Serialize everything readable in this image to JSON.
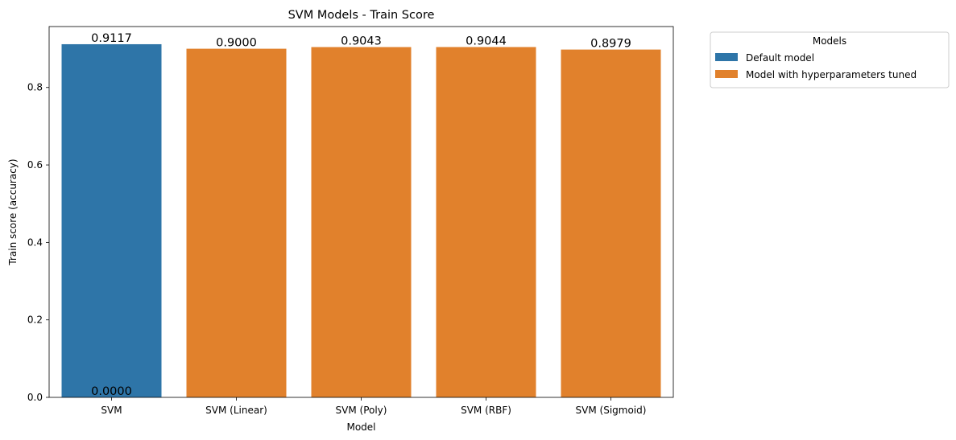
{
  "chart_data": {
    "type": "bar",
    "title": "SVM Models - Train Score",
    "xlabel": "Model",
    "ylabel": "Train score (accuracy)",
    "categories": [
      "SVM",
      "SVM (Linear)",
      "SVM (Poly)",
      "SVM (RBF)",
      "SVM (Sigmoid)"
    ],
    "series": [
      {
        "name": "Default model",
        "color": "#2e75a8",
        "values": [
          0.9117,
          null,
          null,
          null,
          null
        ]
      },
      {
        "name": "Model with hyperparameters tuned",
        "color": "#e1812c",
        "values": [
          0.0,
          0.9,
          0.9043,
          0.9044,
          0.8979
        ]
      }
    ],
    "bar_labels": [
      "0.9117",
      "0.9000",
      "0.9043",
      "0.9044",
      "0.8979"
    ],
    "extra_labels": [
      {
        "category": "SVM",
        "text": "0.0000",
        "value": 0.0
      }
    ],
    "ylim": [
      0,
      0.9573
    ],
    "yticks": [
      0.0,
      0.2,
      0.4,
      0.6,
      0.8
    ],
    "ytick_labels": [
      "0.0",
      "0.2",
      "0.4",
      "0.6",
      "0.8"
    ],
    "grid": false,
    "legend": {
      "title": "Models",
      "placement": "outside upper right",
      "entries": [
        "Default model",
        "Model with hyperparameters tuned"
      ]
    }
  }
}
